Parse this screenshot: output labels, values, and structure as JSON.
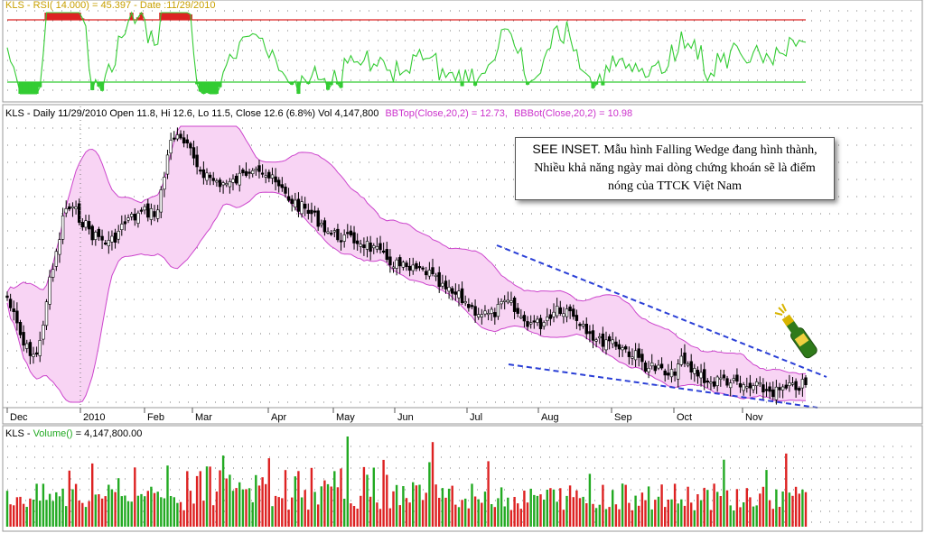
{
  "rsi_panel": {
    "legend": "KLS - RSI( 14.000) =  45.397 - Date :11/29/2010",
    "upper_level": 70,
    "lower_level": 30,
    "line_color": "#33cc33",
    "upper_color": "#dd2222",
    "lower_color": "#33cc33"
  },
  "price_panel": {
    "legend_main": "KLS - Daily 11/29/2010 Open 11.8, Hi 12.6, Lo 11.5, Close 12.6 (6.8%) Vol 4,147,800",
    "legend_bbtop": "BBTop(Close,20,2) = 12.73,",
    "legend_bbbot": "BBBot(Close,20,2) = 10.98",
    "band_color": "#cc44cc",
    "band_fill": "#f8d4f4",
    "trendline_color": "#2a3fd6"
  },
  "volume_panel": {
    "legend_prefix": "KLS - ",
    "legend_series": "Volume()",
    "legend_value": " = 4,147,800.00",
    "up_color": "#22aa22",
    "down_color": "#dd2222"
  },
  "inset": {
    "lead": "SEE INSET.",
    "text": "Mẫu hình Falling Wedge đang hình thành, Nhiều khả năng ngày mai dòng chứng khoán sẽ là điểm nóng của TTCK Việt Nam"
  },
  "chart_data": {
    "type": "candlestick",
    "ticker": "KLS",
    "x_axis": {
      "labels": [
        "Dec",
        "2010",
        "Feb",
        "Mar",
        "Apr",
        "May",
        "Jun",
        "Jul",
        "Aug",
        "Sep",
        "Oct",
        "Nov"
      ]
    },
    "last_bar": {
      "date": "11/29/2010",
      "open": 11.8,
      "high": 12.6,
      "low": 11.5,
      "close": 12.6,
      "change_pct": 6.8,
      "volume": 4147800
    },
    "indicators": {
      "rsi_14": 45.397,
      "bb_top_20_2": 12.73,
      "bb_bot_20_2": 10.98
    },
    "series": [
      {
        "name": "RSI( 14.000)",
        "panel": "rsi"
      },
      {
        "name": "BBTop(Close,20,2)",
        "panel": "price"
      },
      {
        "name": "BBBot(Close,20,2)",
        "panel": "price"
      },
      {
        "name": "Volume()",
        "panel": "volume"
      }
    ],
    "annotations": [
      "Falling Wedge trendlines (upper and lower, dashed blue)"
    ]
  }
}
